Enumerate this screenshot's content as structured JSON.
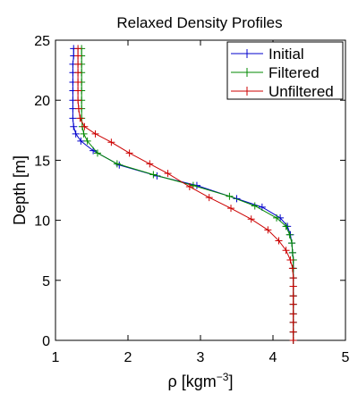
{
  "chart_data": {
    "type": "line",
    "title": "Relaxed Density Profiles",
    "xlabel": "ρ [kgm",
    "xlabel_sup": "−3",
    "xlabel_close": "]",
    "ylabel": "Depth [m]",
    "xlim": [
      1,
      5
    ],
    "ylim": [
      0,
      25
    ],
    "xticks": [
      1,
      2,
      3,
      4,
      5
    ],
    "yticks": [
      0,
      5,
      10,
      15,
      20,
      25
    ],
    "grid": false,
    "legend_position": "top-right",
    "marker": "plus",
    "series": [
      {
        "name": "Initial",
        "color": "#0000cc",
        "points": [
          [
            1.25,
            24.3
          ],
          [
            1.25,
            23.7
          ],
          [
            1.24,
            23.0
          ],
          [
            1.24,
            22.3
          ],
          [
            1.24,
            21.5
          ],
          [
            1.24,
            20.8
          ],
          [
            1.24,
            20.0
          ],
          [
            1.24,
            19.3
          ],
          [
            1.24,
            18.5
          ],
          [
            1.25,
            17.8
          ],
          [
            1.28,
            17.2
          ],
          [
            1.35,
            16.6
          ],
          [
            1.52,
            15.8
          ],
          [
            1.88,
            14.6
          ],
          [
            2.4,
            13.7
          ],
          [
            2.95,
            12.9
          ],
          [
            3.5,
            11.8
          ],
          [
            3.85,
            11.1
          ],
          [
            4.1,
            10.2
          ],
          [
            4.2,
            9.5
          ],
          [
            4.24,
            8.8
          ],
          [
            4.26,
            8.1
          ],
          [
            4.27,
            7.3
          ],
          [
            4.28,
            6.7
          ],
          [
            4.28,
            6.0
          ],
          [
            4.28,
            5.2
          ],
          [
            4.28,
            4.5
          ],
          [
            4.28,
            3.7
          ],
          [
            4.28,
            3.0
          ],
          [
            4.28,
            2.2
          ],
          [
            4.28,
            1.5
          ],
          [
            4.28,
            0.7
          ],
          [
            4.28,
            0.0
          ]
        ]
      },
      {
        "name": "Filtered",
        "color": "#008800",
        "points": [
          [
            1.36,
            24.3
          ],
          [
            1.36,
            23.7
          ],
          [
            1.36,
            23.0
          ],
          [
            1.36,
            22.3
          ],
          [
            1.36,
            21.5
          ],
          [
            1.36,
            20.8
          ],
          [
            1.36,
            20.0
          ],
          [
            1.36,
            19.3
          ],
          [
            1.36,
            18.5
          ],
          [
            1.37,
            17.8
          ],
          [
            1.39,
            17.2
          ],
          [
            1.44,
            16.6
          ],
          [
            1.58,
            15.6
          ],
          [
            1.85,
            14.7
          ],
          [
            2.35,
            13.8
          ],
          [
            2.9,
            12.9
          ],
          [
            3.4,
            12.0
          ],
          [
            3.75,
            11.2
          ],
          [
            4.05,
            10.2
          ],
          [
            4.18,
            9.5
          ],
          [
            4.23,
            8.8
          ],
          [
            4.26,
            8.1
          ],
          [
            4.27,
            7.3
          ],
          [
            4.28,
            6.7
          ],
          [
            4.28,
            6.0
          ],
          [
            4.28,
            5.2
          ],
          [
            4.28,
            4.5
          ],
          [
            4.28,
            3.7
          ],
          [
            4.28,
            3.0
          ],
          [
            4.28,
            2.2
          ],
          [
            4.28,
            1.5
          ],
          [
            4.28,
            0.7
          ],
          [
            4.28,
            0.0
          ]
        ]
      },
      {
        "name": "Unfiltered",
        "color": "#cc0000",
        "points": [
          [
            1.31,
            24.3
          ],
          [
            1.31,
            23.7
          ],
          [
            1.31,
            23.0
          ],
          [
            1.31,
            22.3
          ],
          [
            1.31,
            21.5
          ],
          [
            1.31,
            20.8
          ],
          [
            1.31,
            20.0
          ],
          [
            1.32,
            19.3
          ],
          [
            1.34,
            18.5
          ],
          [
            1.4,
            17.8
          ],
          [
            1.55,
            17.2
          ],
          [
            1.77,
            16.5
          ],
          [
            2.02,
            15.6
          ],
          [
            2.3,
            14.7
          ],
          [
            2.55,
            13.9
          ],
          [
            2.85,
            12.8
          ],
          [
            3.12,
            11.9
          ],
          [
            3.42,
            11.0
          ],
          [
            3.7,
            10.1
          ],
          [
            3.93,
            9.2
          ],
          [
            4.08,
            8.3
          ],
          [
            4.18,
            7.5
          ],
          [
            4.24,
            6.7
          ],
          [
            4.27,
            6.0
          ],
          [
            4.28,
            5.2
          ],
          [
            4.28,
            4.5
          ],
          [
            4.28,
            3.7
          ],
          [
            4.28,
            3.0
          ],
          [
            4.28,
            2.2
          ],
          [
            4.28,
            1.5
          ],
          [
            4.28,
            0.7
          ],
          [
            4.28,
            0.0
          ]
        ]
      }
    ]
  }
}
